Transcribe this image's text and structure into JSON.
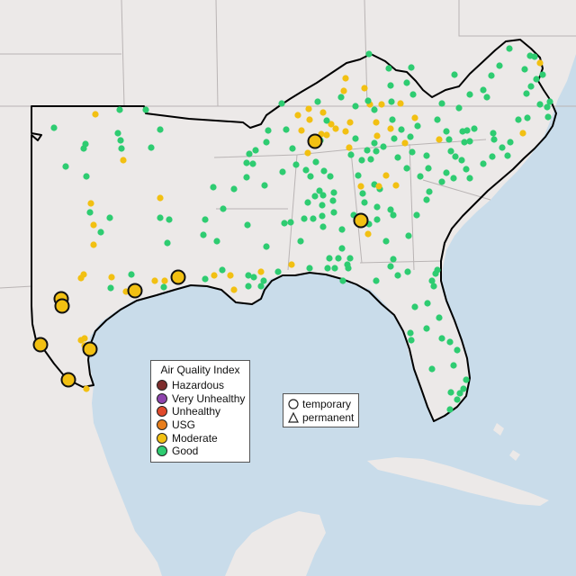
{
  "legend": {
    "title": "Air Quality Index",
    "categories": [
      {
        "label": "Hazardous",
        "color": "#7e2d2d"
      },
      {
        "label": "Very Unhealthy",
        "color": "#8e44ad"
      },
      {
        "label": "Unhealthy",
        "color": "#e04a2c"
      },
      {
        "label": "USG",
        "color": "#e87e1c"
      },
      {
        "label": "Moderate",
        "color": "#f2c012"
      },
      {
        "label": "Good",
        "color": "#2ecc71"
      }
    ]
  },
  "site_types": [
    {
      "label": "temporary",
      "icon": "circle-icon"
    },
    {
      "label": "permanent",
      "icon": "triangle-icon"
    }
  ],
  "colors": {
    "water": "#c9dcea",
    "land": "#efeceb",
    "state_border": "#b9b4b4",
    "region_outline": "#000000",
    "good": "#2ecc71",
    "moderate": "#f2c012"
  }
}
